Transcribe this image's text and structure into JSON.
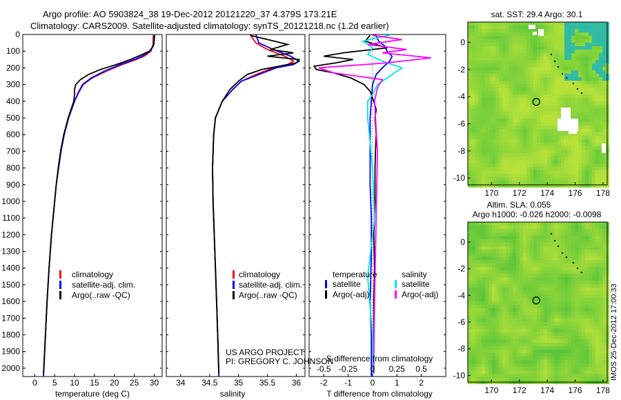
{
  "header": {
    "line1": "Argo profile: AO 5903824_38 19-Dec-2012 20121220_37 4.379S 173.21E",
    "line2": "Climatology: CARS2009. Satellite-adjusted climatology: synTS_20121218.nc (1.2d earlier)"
  },
  "credit": {
    "project": "US ARGO PROJECT",
    "pi": "PI: GREGORY C. JOHNSON",
    "stamp": "IMOS 25-Dec-2012 17:00:33"
  },
  "colors": {
    "climatology": "#ff0000",
    "satellite_adj": "#0000ff",
    "argo": "#000000",
    "sal_satellite": "#00e5e5",
    "sal_argo": "#ff00ff",
    "map_green": "#7cd63a",
    "map_yellow": "#c8e63c"
  },
  "chart_data": [
    {
      "type": "line",
      "xlabel": "temperature (deg C)",
      "ylabel": "",
      "xlim": [
        -3,
        32
      ],
      "ylim": [
        2050,
        0
      ],
      "xticks": [
        0,
        5,
        10,
        15,
        20,
        25,
        30
      ],
      "yticks": [
        0,
        100,
        200,
        300,
        400,
        500,
        600,
        700,
        800,
        900,
        1000,
        1100,
        1200,
        1300,
        1400,
        1500,
        1600,
        1700,
        1800,
        1900,
        2000
      ],
      "legend": [
        "climatology",
        "satellite-adj. clim.",
        "Argo(..raw -QC)"
      ],
      "series": [
        {
          "name": "climatology",
          "color": "#ff0000",
          "depth": [
            0,
            60,
            100,
            130,
            150,
            180,
            220,
            260,
            300,
            350,
            400,
            500,
            600,
            700,
            800,
            900,
            1000,
            1200,
            1400,
            1600,
            1800,
            2050
          ],
          "values": [
            29.8,
            29.7,
            29.2,
            27.5,
            25.5,
            22.0,
            18.0,
            14.5,
            12.2,
            11.0,
            10.0,
            8.5,
            7.4,
            6.6,
            6.0,
            5.4,
            5.0,
            4.2,
            3.6,
            3.1,
            2.7,
            2.2
          ]
        },
        {
          "name": "satellite-adj. clim.",
          "color": "#0000ff",
          "depth": [
            0,
            60,
            100,
            130,
            150,
            180,
            220,
            260,
            300,
            350,
            400,
            500,
            600,
            700,
            800,
            900,
            1000,
            1200,
            1400,
            1600,
            1800,
            2050
          ],
          "values": [
            30.0,
            29.9,
            29.0,
            27.0,
            25.0,
            21.5,
            17.5,
            14.2,
            12.0,
            10.9,
            10.0,
            8.5,
            7.4,
            6.6,
            6.0,
            5.4,
            5.0,
            4.2,
            3.6,
            3.1,
            2.7,
            2.2
          ]
        },
        {
          "name": "Argo(..raw -QC)",
          "color": "#000000",
          "depth": [
            5,
            40,
            70,
            100,
            120,
            150,
            180,
            210,
            240,
            270,
            300,
            330,
            360,
            400,
            500,
            600,
            700,
            800,
            900,
            1000,
            1200,
            1400,
            1600,
            1800,
            2030
          ],
          "values": [
            30.1,
            30.0,
            29.8,
            28.8,
            27.0,
            24.0,
            20.5,
            16.5,
            13.5,
            11.5,
            10.3,
            10.0,
            10.0,
            9.8,
            8.4,
            7.3,
            6.5,
            5.9,
            5.4,
            5.0,
            4.2,
            3.6,
            3.1,
            2.7,
            2.2
          ]
        }
      ]
    },
    {
      "type": "line",
      "xlabel": "salinity",
      "ylabel": "",
      "xlim": [
        33.75,
        36.15
      ],
      "ylim": [
        2050,
        0
      ],
      "xticks": [
        34,
        34.5,
        35,
        35.5,
        36
      ],
      "legend": [
        "climatology",
        "satellite-adj. clim.",
        "Argo(..raw -QC)"
      ],
      "series": [
        {
          "name": "climatology",
          "color": "#ff0000",
          "depth": [
            0,
            50,
            90,
            130,
            160,
            180,
            200,
            240,
            280,
            330,
            400,
            500,
            600,
            800,
            1000,
            1200,
            1400,
            1600,
            1800,
            2050
          ],
          "values": [
            35.2,
            35.3,
            35.5,
            35.8,
            35.95,
            35.85,
            35.6,
            35.3,
            35.05,
            34.9,
            34.72,
            34.6,
            34.57,
            34.55,
            34.56,
            34.58,
            34.6,
            34.62,
            34.64,
            34.66
          ]
        },
        {
          "name": "satellite-adj. clim.",
          "color": "#0000ff",
          "depth": [
            0,
            50,
            90,
            130,
            160,
            180,
            200,
            240,
            280,
            330,
            400,
            500,
            600,
            800,
            1000,
            1200,
            1400,
            1600,
            1800,
            2050
          ],
          "values": [
            35.3,
            35.35,
            35.6,
            35.9,
            36.05,
            35.95,
            35.65,
            35.35,
            35.05,
            34.9,
            34.72,
            34.6,
            34.57,
            34.55,
            34.56,
            34.58,
            34.6,
            34.62,
            34.64,
            34.66
          ]
        },
        {
          "name": "Argo(..raw -QC)",
          "color": "#000000",
          "depth": [
            5,
            30,
            60,
            90,
            110,
            130,
            150,
            170,
            190,
            210,
            240,
            280,
            330,
            400,
            500,
            600,
            800,
            1000,
            1200,
            1400,
            1600,
            1800,
            2030
          ],
          "values": [
            35.2,
            35.5,
            35.85,
            35.55,
            35.95,
            35.5,
            36.05,
            36.0,
            35.7,
            35.4,
            35.15,
            35.0,
            34.85,
            34.72,
            34.6,
            34.57,
            34.55,
            34.56,
            34.58,
            34.6,
            34.62,
            34.64,
            34.66
          ]
        }
      ]
    },
    {
      "type": "line",
      "xlabel": "T difference from climatology",
      "xlabel_top": "S difference from climatology",
      "xlim": [
        -2.6,
        3.0
      ],
      "ylim": [
        2050,
        0
      ],
      "xticks_T": [
        -2,
        -1,
        0,
        1,
        2
      ],
      "xticks_S": [
        -0.5,
        -0.25,
        0,
        0.25,
        0.5
      ],
      "legend": {
        "temperature_heading": "temperature",
        "salinity_heading": "salinity",
        "items": [
          "satellite",
          "Argo(-adj)",
          "satellite",
          "Argo(-adj)"
        ]
      },
      "series": [
        {
          "name": "satellite",
          "color": "#0000ff",
          "variable": "temperature",
          "depth": [
            0,
            40,
            70,
            100,
            130,
            160,
            200,
            240,
            300,
            400,
            500,
            700,
            900,
            1100,
            1300,
            1500,
            1600,
            1800,
            2050
          ],
          "values": [
            0.1,
            0.25,
            0.5,
            0.6,
            0.8,
            0.7,
            0.4,
            0.15,
            0.0,
            -0.05,
            -0.1,
            -0.1,
            -0.1,
            -0.05,
            -0.05,
            -0.08,
            -0.1,
            -0.05,
            -0.05
          ]
        },
        {
          "name": "Argo(-adj)",
          "color": "#000000",
          "variable": "temperature",
          "depth": [
            5,
            40,
            80,
            110,
            130,
            150,
            170,
            190,
            210,
            230,
            260,
            300,
            340,
            400,
            450,
            500,
            600,
            700,
            800,
            1000,
            1200,
            1400,
            1600,
            1800,
            2030
          ],
          "values": [
            -0.1,
            -0.3,
            0.6,
            -1.2,
            -2.0,
            -0.8,
            -1.5,
            -2.4,
            -2.3,
            -1.6,
            -0.9,
            -0.35,
            -0.1,
            0.05,
            0.15,
            0.1,
            0.15,
            0.12,
            0.1,
            0.1,
            0.05,
            0.08,
            0.05,
            0.05,
            0.05
          ]
        },
        {
          "name": "satellite",
          "color": "#00e5e5",
          "variable": "salinity",
          "depth": [
            0,
            40,
            80,
            120,
            160,
            200,
            240,
            300,
            360,
            400,
            500,
            800,
            1100,
            1300,
            1450,
            1600,
            1800,
            2050
          ],
          "values": [
            0.2,
            -0.1,
            0.0,
            -0.05,
            0.1,
            0.3,
            0.2,
            0.05,
            0.0,
            -0.05,
            -0.05,
            0.0,
            0.02,
            -0.02,
            -0.05,
            -0.03,
            0.0,
            0.0
          ]
        },
        {
          "name": "Argo(-adj)",
          "color": "#ff00ff",
          "variable": "salinity",
          "depth": [
            5,
            30,
            60,
            90,
            110,
            140,
            170,
            200,
            230,
            270,
            320,
            400,
            500,
            700,
            1000,
            1300,
            1600,
            2030
          ],
          "values": [
            0.0,
            0.3,
            -0.05,
            0.35,
            0.1,
            0.6,
            0.15,
            -0.55,
            -0.4,
            0.1,
            0.05,
            0.02,
            0.03,
            0.05,
            0.04,
            0.03,
            0.02,
            0.01
          ]
        }
      ]
    },
    {
      "type": "heatmap",
      "title": "sat. SST: 29.4 Argo: 30.1",
      "xlim": [
        168.3,
        178.3
      ],
      "ylim": [
        -10.5,
        1.5
      ],
      "xticks": [
        170,
        172,
        174,
        176,
        178
      ],
      "yticks": [
        0,
        -2,
        -4,
        -6,
        -8,
        -10
      ],
      "argo_position": {
        "lon": 173.21,
        "lat": -4.379
      }
    },
    {
      "type": "heatmap",
      "title_line1": "Altim. SLA: 0.055",
      "title_line2": "Argo h1000: -0.026 h2000: -0.0098",
      "xlim": [
        168.3,
        178.3
      ],
      "ylim": [
        -10.5,
        1.5
      ],
      "xticks": [
        170,
        172,
        174,
        176,
        178
      ],
      "yticks": [
        0,
        -2,
        -4,
        -6,
        -8,
        -10
      ],
      "argo_position": {
        "lon": 173.21,
        "lat": -4.379
      }
    }
  ]
}
